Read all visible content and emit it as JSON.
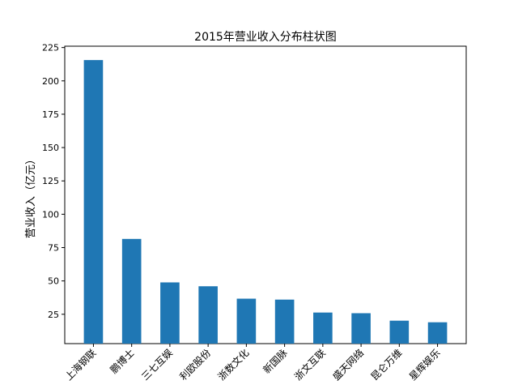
{
  "chart_data": {
    "type": "bar",
    "title": "2015年营业收入分布柱状图",
    "xlabel": "",
    "ylabel": "营业收入（亿元）",
    "categories": [
      "上海钢联",
      "鹏博士",
      "三七互娱",
      "利欧股份",
      "浙数文化",
      "新国脉",
      "浙文互联",
      "盛天网络",
      "昆仑万维",
      "星辉娱乐"
    ],
    "values": [
      215.6,
      81.5,
      48.9,
      46.0,
      36.7,
      36.0,
      26.3,
      25.8,
      20.2,
      19.0
    ],
    "ylim": [
      3,
      226
    ],
    "yticks": [
      25,
      50,
      75,
      100,
      125,
      150,
      175,
      200,
      225
    ],
    "grid": false,
    "legend": "none",
    "bar_color": "#1f77b4"
  }
}
